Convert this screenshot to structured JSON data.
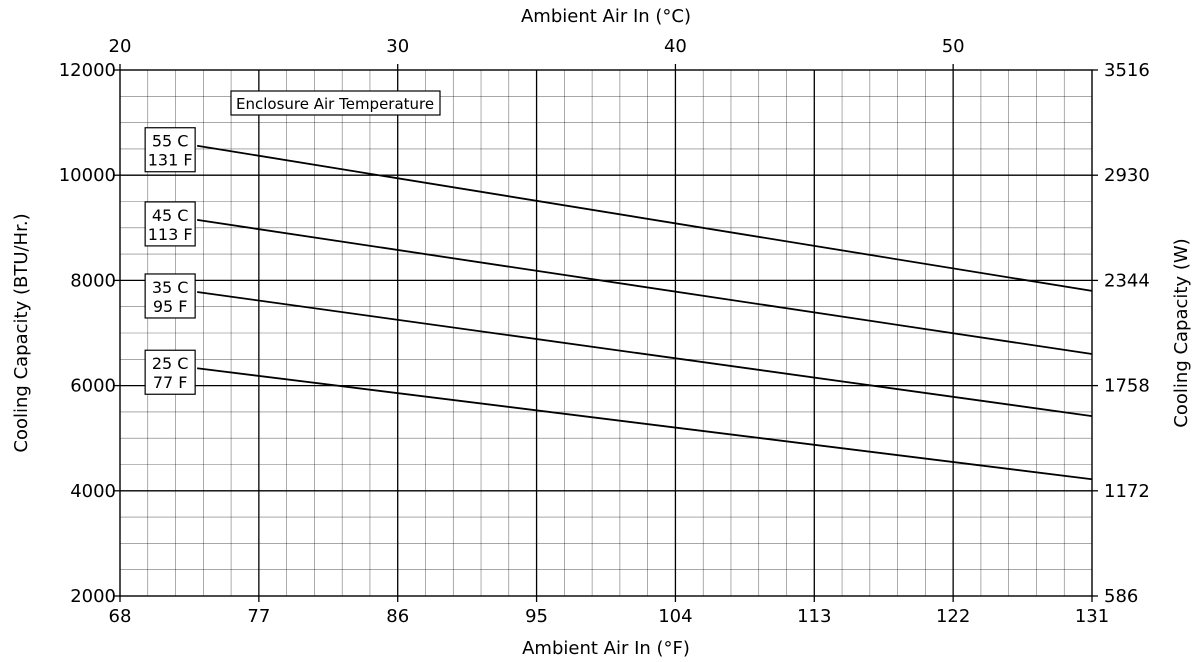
{
  "chart_data": {
    "type": "line",
    "title": "",
    "xlabel": "Ambient Air In (°F)",
    "ylabel": "Cooling Capacity (BTU/Hr.)",
    "top_xlabel": "Ambient Air In (°C)",
    "right_ylabel": "Cooling Capacity (W)",
    "xlim": [
      68,
      131
    ],
    "ylim": [
      2000,
      12000
    ],
    "x_ticks": [
      "68",
      "77",
      "86",
      "95",
      "104",
      "113",
      "122",
      "131"
    ],
    "y_ticks": [
      "2000",
      "4000",
      "6000",
      "8000",
      "10000",
      "12000"
    ],
    "top_x_ticks": [
      "20",
      "30",
      "40",
      "50"
    ],
    "right_y_ticks": [
      "586",
      "1172",
      "1758",
      "2344",
      "2930",
      "3516"
    ],
    "grid": true,
    "legend_title": "Enclosure Air Temperature",
    "series": [
      {
        "name_line1": "55 C",
        "name_line2": "131 F",
        "x": [
          73,
          131
        ],
        "y": [
          10560,
          7800
        ]
      },
      {
        "name_line1": "45 C",
        "name_line2": "113 F",
        "x": [
          73,
          131
        ],
        "y": [
          9150,
          6600
        ]
      },
      {
        "name_line1": "35 C",
        "name_line2": "95 F",
        "x": [
          73,
          131
        ],
        "y": [
          7780,
          5420
        ]
      },
      {
        "name_line1": "25 C",
        "name_line2": "77 F",
        "x": [
          73,
          131
        ],
        "y": [
          6330,
          4220
        ]
      }
    ]
  }
}
